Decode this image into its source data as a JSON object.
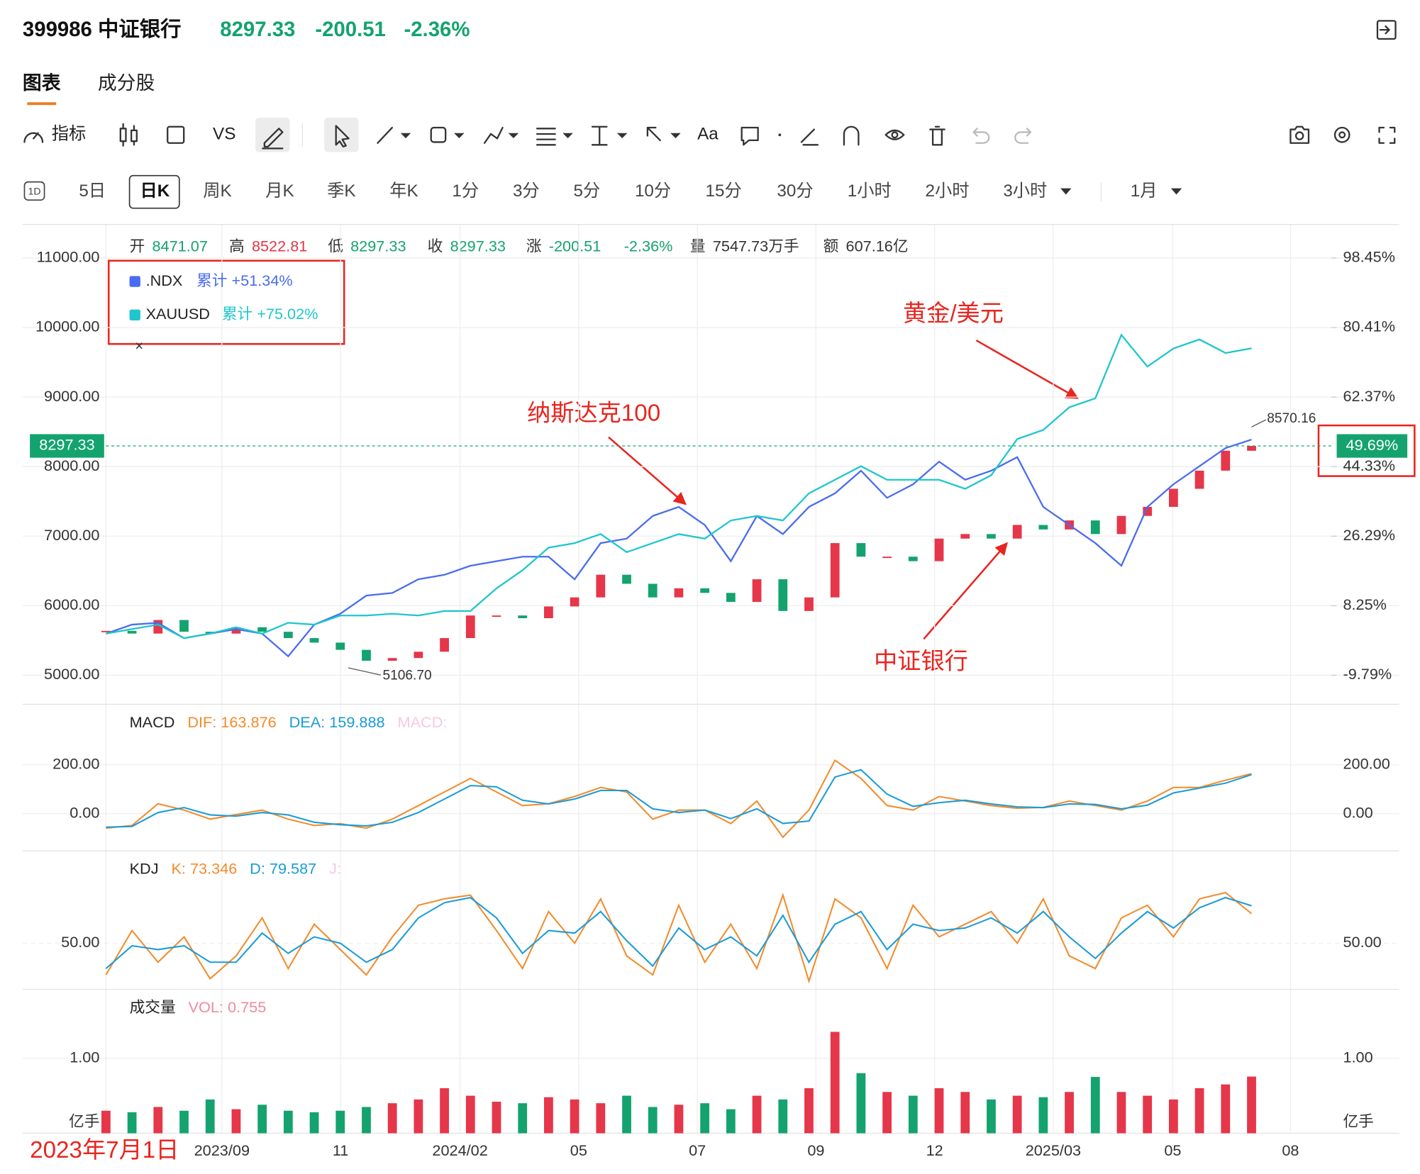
{
  "header": {
    "symbol": "399986 中证银行",
    "price": "8297.33",
    "change": "-200.51",
    "change_pct": "-2.36%"
  },
  "tabs": [
    "图表",
    "成分股"
  ],
  "toolbar": [
    "指标",
    "VS",
    "Aa"
  ],
  "periods": [
    "1D",
    "5日",
    "日K",
    "周K",
    "月K",
    "季K",
    "年K",
    "1分",
    "3分",
    "5分",
    "10分",
    "15分",
    "30分",
    "1小时",
    "2小时",
    "3小时",
    "1月"
  ],
  "info": [
    {
      "label": "开",
      "value": "8471.07"
    },
    {
      "label": "高",
      "value": "8522.81"
    },
    {
      "label": "低",
      "value": "8297.33"
    },
    {
      "label": "收",
      "value": "8297.33"
    },
    {
      "label": "涨",
      "value": "-200.51"
    },
    {
      "value": "-2.36%"
    },
    {
      "label": "量",
      "value": "7547.73万手"
    },
    {
      "label": "额",
      "value": "607.16亿"
    }
  ],
  "annotations": [
    "纳斯达克100",
    "黄金/美元",
    "中证银行",
    "2023年7月1日"
  ],
  "x_tick_labels": [
    "2023/09",
    "11",
    "2024/02",
    "05",
    "07",
    "09",
    "12",
    "2025/03",
    "05",
    "08"
  ],
  "chart_data": [
    {
      "type": "candlestick",
      "up_color": "#e5364a",
      "down_color": "#14a36e",
      "grid": true,
      "values": [
        5638,
        5599,
        5794,
        5625,
        5599,
        5690,
        5625,
        5534,
        5469,
        5365,
        5208,
        5247,
        5338,
        5534,
        5859,
        5859,
        5820,
        5989,
        6119,
        6445,
        6315,
        6119,
        6250,
        6184,
        6054,
        6380,
        5924,
        6119,
        6900,
        6705,
        6705,
        6640,
        6965,
        7030,
        6965,
        7161,
        7096,
        7226,
        7030,
        7291,
        7421,
        7681,
        7942,
        8228,
        8297.33
      ],
      "ylim": [
        4583,
        11482
      ],
      "yticks": [
        {
          "value": 11000,
          "label": "11000.00"
        },
        {
          "value": 10000,
          "label": "10000.00"
        },
        {
          "value": 9000,
          "label": "9000.00"
        },
        {
          "value": 8000,
          "label": "8000.00"
        },
        {
          "value": 7000,
          "label": "7000.00"
        },
        {
          "value": 6000,
          "label": "6000.00"
        },
        {
          "value": 5000,
          "label": "5000.00"
        }
      ],
      "y2lim": [
        -17.3,
        107.14
      ],
      "y2ticks": [
        {
          "value": 98.45,
          "label": "98.45%"
        },
        {
          "value": 80.41,
          "label": "80.41%"
        },
        {
          "value": 62.37,
          "label": "62.37%"
        },
        {
          "value": 44.33,
          "label": "44.33%"
        },
        {
          "value": 26.29,
          "label": "26.29%"
        },
        {
          "value": 8.25,
          "label": "8.25%"
        },
        {
          "value": -9.79,
          "label": "-9.79%"
        }
      ],
      "last_price": {
        "value": 8297.33,
        "label": "8297.33"
      },
      "last_pct": {
        "value": 49.69,
        "label": "49.69%"
      },
      "max_label": {
        "value": 8570.16,
        "label": "8570.16"
      },
      "min_label": {
        "value": 5106.7,
        "label": "5106.70"
      },
      "series": [
        {
          "name": ".NDX",
          "label": "累计 +51.34%",
          "color": "#4a6cf0",
          "axis": "y2",
          "values": [
            1.01,
            3.35,
            3.82,
            -0.17,
            1.01,
            2.18,
            1.01,
            -4.86,
            3.35,
            6.17,
            10.87,
            11.57,
            15.1,
            16.27,
            18.62,
            19.8,
            20.97,
            20.97,
            15.1,
            24.49,
            25.66,
            31.53,
            33.88,
            29.18,
            19.8,
            31.53,
            26.84,
            33.88,
            37.4,
            43.27,
            36.23,
            39.75,
            45.62,
            40.92,
            43.27,
            46.79,
            33.88,
            29.18,
            24.49,
            18.62,
            33.88,
            39.75,
            44.45,
            49.14,
            51.34
          ]
        },
        {
          "name": "XAUUSD",
          "label": "累计 +75.02%",
          "color": "#1fc6cc",
          "axis": "y2",
          "values": [
            1.01,
            2.18,
            3.35,
            -0.17,
            1.01,
            2.65,
            1.01,
            3.82,
            3.35,
            5.7,
            5.7,
            6.17,
            5.7,
            6.88,
            6.88,
            12.75,
            17.45,
            23.32,
            24.49,
            26.84,
            22.15,
            24.49,
            26.84,
            25.66,
            30.36,
            31.53,
            30.36,
            37.4,
            40.92,
            44.45,
            40.92,
            40.92,
            40.92,
            38.58,
            42.1,
            51.49,
            53.84,
            59.71,
            62.06,
            78.49,
            70.28,
            74.97,
            77.32,
            73.8,
            75.02
          ]
        }
      ]
    },
    {
      "type": "line",
      "title": "MACD",
      "ylim": [
        -152,
        448
      ],
      "yticks": [
        {
          "value": 200,
          "label": "200.00"
        },
        {
          "value": 0,
          "label": "0.00"
        }
      ],
      "series": [
        {
          "name": "DIF: 163.876",
          "color": "#f28b2c",
          "values": [
            -59.3,
            -48.1,
            40.7,
            14.8,
            -22.2,
            -3.7,
            14.8,
            -22.2,
            -48.1,
            -40.7,
            -59.3,
            -22.2,
            33.3,
            88.9,
            144.4,
            88.9,
            33.3,
            40.7,
            70.4,
            107.4,
            88.9,
            -22.2,
            14.8,
            14.8,
            -40.7,
            51.9,
            -96.3,
            14.8,
            218.5,
            144.4,
            33.3,
            14.8,
            70.4,
            51.9,
            33.3,
            22.2,
            25.9,
            51.9,
            33.3,
            14.8,
            51.9,
            107.4,
            107.4,
            137.0,
            163.876
          ]
        },
        {
          "name": "DEA: 159.888",
          "color": "#1a9bd7",
          "values": [
            -55,
            -52,
            5,
            25,
            -5,
            -10,
            5,
            -5,
            -35,
            -45,
            -50,
            -35,
            5,
            60,
            115,
            110,
            55,
            40,
            60,
            95,
            95,
            20,
            5,
            15,
            -20,
            20,
            -40,
            -30,
            150,
            180,
            80,
            30,
            45,
            55,
            40,
            28,
            25,
            40,
            38,
            20,
            35,
            85,
            105,
            125,
            159.888
          ]
        },
        {
          "name": "MACD:",
          "color": "#f7c8e2"
        }
      ]
    },
    {
      "type": "line",
      "title": "KDJ",
      "ylim": [
        13.6,
        122.9
      ],
      "yticks": [
        {
          "value": 50,
          "label": "50.00"
        }
      ],
      "series": [
        {
          "name": "K: 73.346",
          "color": "#f28b2c",
          "values": [
            25,
            60,
            35,
            55,
            22,
            40,
            70,
            30,
            65,
            45,
            25,
            55,
            80,
            85,
            88,
            60,
            30,
            75,
            50,
            85,
            40,
            25,
            80,
            35,
            65,
            30,
            88,
            20,
            85,
            70,
            30,
            80,
            55,
            65,
            75,
            50,
            85,
            40,
            30,
            70,
            80,
            55,
            85,
            90,
            73.346
          ]
        },
        {
          "name": "D: 79.587",
          "color": "#1a9bd7",
          "values": [
            30,
            48,
            45,
            48,
            35,
            35,
            58,
            42,
            55,
            50,
            35,
            45,
            70,
            82,
            86,
            70,
            42,
            60,
            58,
            75,
            52,
            32,
            62,
            45,
            55,
            40,
            72,
            35,
            65,
            75,
            45,
            65,
            60,
            62,
            70,
            58,
            75,
            55,
            38,
            58,
            75,
            62,
            78,
            86,
            79.587
          ]
        },
        {
          "name": "J:",
          "color": "#f7c8e2"
        }
      ]
    },
    {
      "type": "bar",
      "title": "成交量",
      "ylim": [
        0,
        1.916
      ],
      "unit": "亿手",
      "yticks": [
        {
          "value": 1,
          "label": "1.00"
        }
      ],
      "series": [
        {
          "name": "VOL: 0.755",
          "color": "#f08aa0",
          "values": [
            0.3,
            0.28,
            0.35,
            0.3,
            0.45,
            0.32,
            0.38,
            0.3,
            0.28,
            0.3,
            0.35,
            0.4,
            0.45,
            0.6,
            0.5,
            0.42,
            0.4,
            0.48,
            0.45,
            0.4,
            0.5,
            0.35,
            0.38,
            0.4,
            0.32,
            0.5,
            0.45,
            0.6,
            1.35,
            0.8,
            0.55,
            0.5,
            0.6,
            0.55,
            0.45,
            0.5,
            0.48,
            0.55,
            0.75,
            0.55,
            0.5,
            0.45,
            0.6,
            0.65,
            0.755
          ]
        }
      ]
    }
  ]
}
